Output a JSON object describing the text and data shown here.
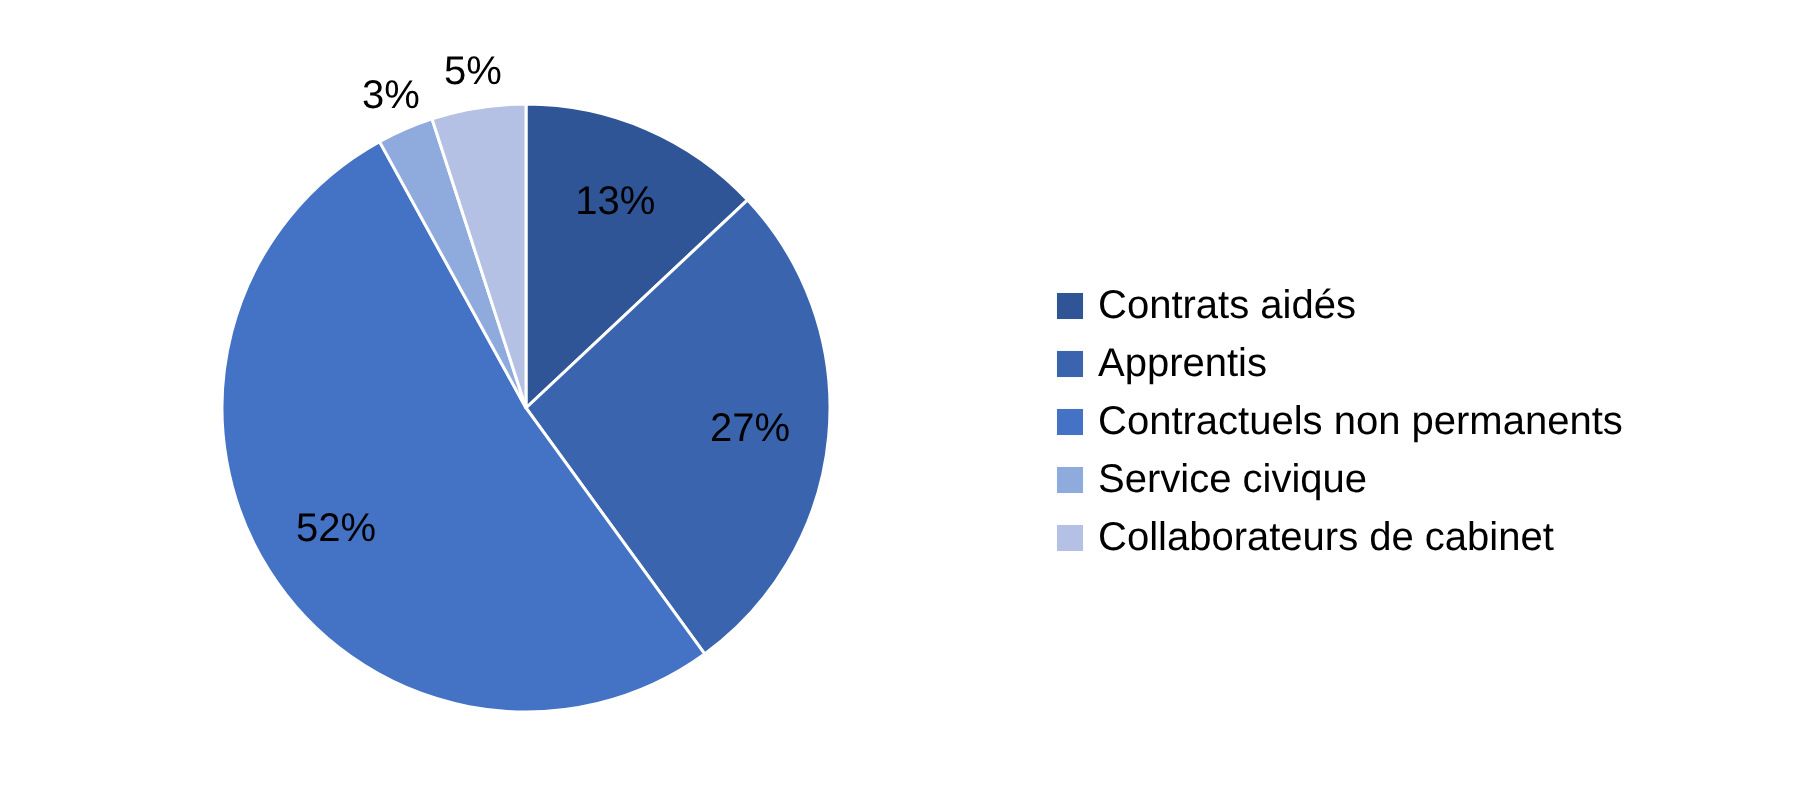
{
  "chart_data": {
    "type": "pie",
    "categories": [
      "Contrats aidés",
      "Apprentis",
      "Contractuels non permanents",
      "Service civique",
      "Collaborateurs de cabinet"
    ],
    "values": [
      13,
      27,
      52,
      3,
      5
    ],
    "colors": [
      "#2f5597",
      "#3a65ae",
      "#4472c4",
      "#8faadc",
      "#b4c0e4"
    ],
    "value_labels": [
      "13%",
      "27%",
      "52%",
      "3%",
      "5%"
    ],
    "legend": "right"
  }
}
